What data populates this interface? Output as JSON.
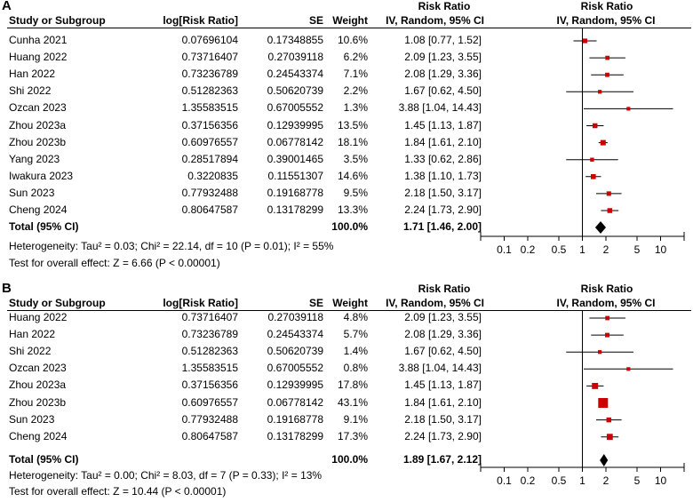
{
  "chart_data": [
    {
      "type": "forest",
      "panel_label": "A",
      "headers": {
        "study": "Study or Subgroup",
        "logrr": "log[Risk Ratio]",
        "se": "SE",
        "weight": "Weight",
        "rr_top": "Risk Ratio",
        "rr_sub": "IV, Random, 95% CI",
        "plot_top": "Risk Ratio",
        "plot_sub": "IV, Random, 95% CI"
      },
      "studies": [
        {
          "name": "Cunha 2021",
          "logrr": "0.07696104",
          "se": "0.17348855",
          "weight": "10.6%",
          "ci_text": "1.08 [0.77, 1.52]",
          "rr": 1.08,
          "lo": 0.77,
          "hi": 1.52,
          "w": 10.6
        },
        {
          "name": "Huang 2022",
          "logrr": "0.73716407",
          "se": "0.27039118",
          "weight": "6.2%",
          "ci_text": "2.09 [1.23, 3.55]",
          "rr": 2.09,
          "lo": 1.23,
          "hi": 3.55,
          "w": 6.2
        },
        {
          "name": "Han 2022",
          "logrr": "0.73236789",
          "se": "0.24543374",
          "weight": "7.1%",
          "ci_text": "2.08 [1.29, 3.36]",
          "rr": 2.08,
          "lo": 1.29,
          "hi": 3.36,
          "w": 7.1
        },
        {
          "name": "Shi 2022",
          "logrr": "0.51282363",
          "se": "0.50620739",
          "weight": "2.2%",
          "ci_text": "1.67 [0.62, 4.50]",
          "rr": 1.67,
          "lo": 0.62,
          "hi": 4.5,
          "w": 2.2
        },
        {
          "name": "Ozcan 2023",
          "logrr": "1.35583515",
          "se": "0.67005552",
          "weight": "1.3%",
          "ci_text": "3.88 [1.04, 14.43]",
          "rr": 3.88,
          "lo": 1.04,
          "hi": 14.43,
          "w": 1.3
        },
        {
          "name": "Zhou 2023a",
          "logrr": "0.37156356",
          "se": "0.12939995",
          "weight": "13.5%",
          "ci_text": "1.45 [1.13, 1.87]",
          "rr": 1.45,
          "lo": 1.13,
          "hi": 1.87,
          "w": 13.5
        },
        {
          "name": "Zhou 2023b",
          "logrr": "0.60976557",
          "se": "0.06778142",
          "weight": "18.1%",
          "ci_text": "1.84 [1.61, 2.10]",
          "rr": 1.84,
          "lo": 1.61,
          "hi": 2.1,
          "w": 18.1
        },
        {
          "name": "Yang 2023",
          "logrr": "0.28517894",
          "se": "0.39001465",
          "weight": "3.5%",
          "ci_text": "1.33 [0.62, 2.86]",
          "rr": 1.33,
          "lo": 0.62,
          "hi": 2.86,
          "w": 3.5
        },
        {
          "name": "Iwakura 2023",
          "logrr": "0.3220835",
          "se": "0.11551307",
          "weight": "14.6%",
          "ci_text": "1.38 [1.10, 1.73]",
          "rr": 1.38,
          "lo": 1.1,
          "hi": 1.73,
          "w": 14.6
        },
        {
          "name": "Sun 2023",
          "logrr": "0.77932488",
          "se": "0.19168778",
          "weight": "9.5%",
          "ci_text": "2.18 [1.50, 3.17]",
          "rr": 2.18,
          "lo": 1.5,
          "hi": 3.17,
          "w": 9.5
        },
        {
          "name": "Cheng 2024",
          "logrr": "0.80647587",
          "se": "0.13178299",
          "weight": "13.3%",
          "ci_text": "2.24 [1.73, 2.90]",
          "rr": 2.24,
          "lo": 1.73,
          "hi": 2.9,
          "w": 13.3
        }
      ],
      "total": {
        "label": "Total (95% CI)",
        "weight": "100.0%",
        "ci_text": "1.71 [1.46, 2.00]",
        "rr": 1.71,
        "lo": 1.46,
        "hi": 2.0
      },
      "heterogeneity": "Heterogeneity: Tau² = 0.03; Chi² = 22.14, df = 10 (P = 0.01); I² = 55%",
      "overall_test": "Test for overall effect: Z = 6.66 (P < 0.00001)",
      "x_axis": {
        "scale": "log",
        "range": [
          0.05,
          20
        ],
        "ticks": [
          0.1,
          0.2,
          0.5,
          1,
          2,
          5,
          10
        ],
        "tick_labels": [
          "0.1",
          "0.2",
          "0.5",
          "1",
          "2",
          "5",
          "10"
        ]
      },
      "marker_color": "#cc0000"
    },
    {
      "type": "forest",
      "panel_label": "B",
      "headers": {
        "study": "Study or Subgroup",
        "logrr": "log[Risk Ratio]",
        "se": "SE",
        "weight": "Weight",
        "rr_top": "Risk Ratio",
        "rr_sub": "IV, Random, 95% CI",
        "plot_top": "Risk Ratio",
        "plot_sub": "IV, Random, 95% CI"
      },
      "studies": [
        {
          "name": "Huang 2022",
          "logrr": "0.73716407",
          "se": "0.27039118",
          "weight": "4.8%",
          "ci_text": "2.09 [1.23, 3.55]",
          "rr": 2.09,
          "lo": 1.23,
          "hi": 3.55,
          "w": 4.8
        },
        {
          "name": "Han 2022",
          "logrr": "0.73236789",
          "se": "0.24543374",
          "weight": "5.7%",
          "ci_text": "2.08 [1.29, 3.36]",
          "rr": 2.08,
          "lo": 1.29,
          "hi": 3.36,
          "w": 5.7
        },
        {
          "name": "Shi 2022",
          "logrr": "0.51282363",
          "se": "0.50620739",
          "weight": "1.4%",
          "ci_text": "1.67 [0.62, 4.50]",
          "rr": 1.67,
          "lo": 0.62,
          "hi": 4.5,
          "w": 1.4
        },
        {
          "name": "Ozcan 2023",
          "logrr": "1.35583515",
          "se": "0.67005552",
          "weight": "0.8%",
          "ci_text": "3.88 [1.04, 14.43]",
          "rr": 3.88,
          "lo": 1.04,
          "hi": 14.43,
          "w": 0.8
        },
        {
          "name": "Zhou 2023a",
          "logrr": "0.37156356",
          "se": "0.12939995",
          "weight": "17.8%",
          "ci_text": "1.45 [1.13, 1.87]",
          "rr": 1.45,
          "lo": 1.13,
          "hi": 1.87,
          "w": 17.8
        },
        {
          "name": "Zhou 2023b",
          "logrr": "0.60976557",
          "se": "0.06778142",
          "weight": "43.1%",
          "ci_text": "1.84 [1.61, 2.10]",
          "rr": 1.84,
          "lo": 1.61,
          "hi": 2.1,
          "w": 43.1
        },
        {
          "name": "Sun 2023",
          "logrr": "0.77932488",
          "se": "0.19168778",
          "weight": "9.1%",
          "ci_text": "2.18 [1.50, 3.17]",
          "rr": 2.18,
          "lo": 1.5,
          "hi": 3.17,
          "w": 9.1
        },
        {
          "name": "Cheng 2024",
          "logrr": "0.80647587",
          "se": "0.13178299",
          "weight": "17.3%",
          "ci_text": "2.24 [1.73, 2.90]",
          "rr": 2.24,
          "lo": 1.73,
          "hi": 2.9,
          "w": 17.3
        }
      ],
      "total": {
        "label": "Total (95% CI)",
        "weight": "100.0%",
        "ci_text": "1.89 [1.67, 2.12]",
        "rr": 1.89,
        "lo": 1.67,
        "hi": 2.12
      },
      "heterogeneity": "Heterogeneity: Tau² = 0.00; Chi² = 8.03, df = 7 (P = 0.33); I² = 13%",
      "overall_test": "Test for overall effect: Z = 10.44 (P < 0.00001)",
      "x_axis": {
        "scale": "log",
        "range": [
          0.05,
          20
        ],
        "ticks": [
          0.1,
          0.2,
          0.5,
          1,
          2,
          5,
          10
        ],
        "tick_labels": [
          "0.1",
          "0.2",
          "0.5",
          "1",
          "2",
          "5",
          "10"
        ]
      },
      "marker_color": "#cc0000"
    }
  ]
}
